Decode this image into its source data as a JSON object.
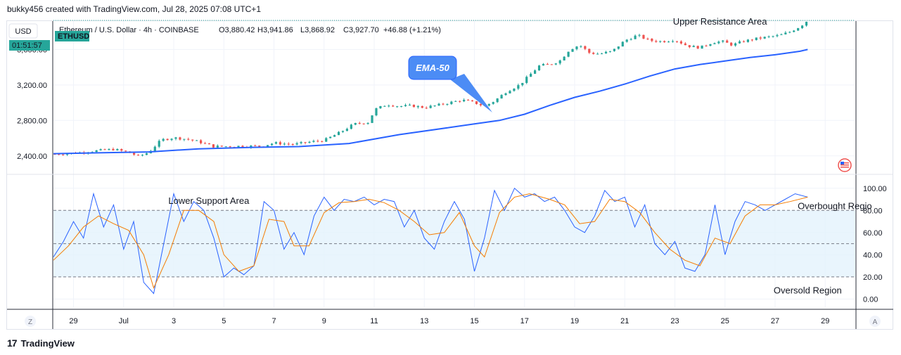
{
  "header": {
    "text": "bukky456 created with TradingView.com, Jul 28, 2025 07:08 UTC+1"
  },
  "footer": {
    "brand": "TradingView",
    "logo": "17"
  },
  "colors": {
    "up": "#26a69a",
    "down": "#ef5350",
    "ema": "#2962ff",
    "k_line": "#2962ff",
    "d_line": "#f57c00",
    "grid": "#f0f3fa",
    "band": "#e3f2fd",
    "accent": "#26a69a",
    "callout": "#4c8cf5"
  },
  "chart_data": [
    {
      "type": "candlestick",
      "symbol_label": "ETHUSD",
      "currency": "USD",
      "countdown": "01:51:57",
      "legend": {
        "name": "Ethereum / U.S. Dollar · 4h · COINBASE",
        "open": "O3,880.42",
        "high": "H3,941.86",
        "low": "L3,868.92",
        "close": "C3,927.70",
        "change": "+46.88 (+1.21%)"
      },
      "y_ticks": [
        "3,600.00",
        "3,200.00",
        "2,800.00",
        "2,400.00"
      ],
      "y_tick_values": [
        3600,
        3200,
        2800,
        2400
      ],
      "ylim": [
        2200,
        3920
      ],
      "x_ticks": [
        "29",
        "Jul",
        "3",
        "5",
        "7",
        "9",
        "11",
        "13",
        "15",
        "17",
        "19",
        "21",
        "23",
        "25",
        "27",
        "29"
      ],
      "x_tick_days": [
        29,
        31,
        33,
        35,
        37,
        39,
        41,
        43,
        45,
        47,
        49,
        51,
        53,
        55,
        57,
        59
      ],
      "xlim": [
        28.2,
        60.2
      ],
      "price_points": [
        [
          28.2,
          2420
        ],
        [
          29,
          2430
        ],
        [
          29.8,
          2455
        ],
        [
          30.6,
          2475
        ],
        [
          31.2,
          2440
        ],
        [
          31.6,
          2395
        ],
        [
          32.0,
          2440
        ],
        [
          32.5,
          2580
        ],
        [
          33.0,
          2605
        ],
        [
          33.5,
          2590
        ],
        [
          34.0,
          2560
        ],
        [
          34.6,
          2505
        ],
        [
          35.5,
          2510
        ],
        [
          36.5,
          2510
        ],
        [
          37.0,
          2545
        ],
        [
          37.8,
          2530
        ],
        [
          38.5,
          2560
        ],
        [
          39.0,
          2575
        ],
        [
          39.6,
          2660
        ],
        [
          40.2,
          2760
        ],
        [
          40.8,
          2780
        ],
        [
          41.0,
          2920
        ],
        [
          41.5,
          2980
        ],
        [
          42.0,
          2960
        ],
        [
          42.5,
          2965
        ],
        [
          43.0,
          2945
        ],
        [
          43.5,
          2970
        ],
        [
          44.0,
          3000
        ],
        [
          44.5,
          3030
        ],
        [
          45.0,
          3000
        ],
        [
          45.4,
          2960
        ],
        [
          45.8,
          3020
        ],
        [
          46.3,
          3130
        ],
        [
          46.8,
          3200
        ],
        [
          47.2,
          3310
        ],
        [
          47.6,
          3420
        ],
        [
          48.0,
          3430
        ],
        [
          48.4,
          3470
        ],
        [
          48.8,
          3600
        ],
        [
          49.2,
          3650
        ],
        [
          49.6,
          3560
        ],
        [
          50.0,
          3550
        ],
        [
          50.5,
          3580
        ],
        [
          51.0,
          3700
        ],
        [
          51.5,
          3760
        ],
        [
          52.0,
          3700
        ],
        [
          52.5,
          3690
        ],
        [
          53.0,
          3710
        ],
        [
          53.5,
          3640
        ],
        [
          54.0,
          3620
        ],
        [
          54.5,
          3680
        ],
        [
          54.9,
          3690
        ],
        [
          55.3,
          3650
        ],
        [
          55.7,
          3690
        ],
        [
          56.2,
          3720
        ],
        [
          56.7,
          3740
        ],
        [
          57.2,
          3760
        ],
        [
          57.6,
          3800
        ],
        [
          58.0,
          3860
        ],
        [
          58.3,
          3928
        ]
      ],
      "ema50_label": "EMA-50",
      "ema50_points": [
        [
          28.2,
          2425
        ],
        [
          30,
          2435
        ],
        [
          32,
          2445
        ],
        [
          34,
          2480
        ],
        [
          36,
          2495
        ],
        [
          38,
          2505
        ],
        [
          40,
          2540
        ],
        [
          42,
          2640
        ],
        [
          44,
          2720
        ],
        [
          45,
          2760
        ],
        [
          46,
          2800
        ],
        [
          47,
          2870
        ],
        [
          48,
          2970
        ],
        [
          49,
          3060
        ],
        [
          50,
          3130
        ],
        [
          51,
          3210
        ],
        [
          52,
          3300
        ],
        [
          53,
          3380
        ],
        [
          54,
          3430
        ],
        [
          55,
          3470
        ],
        [
          56,
          3510
        ],
        [
          57,
          3540
        ],
        [
          58,
          3580
        ],
        [
          58.3,
          3600
        ]
      ],
      "annotations": [
        {
          "text": "Upper Resistance Area",
          "day": 54.8,
          "price": 3880
        }
      ]
    },
    {
      "type": "line",
      "indicator": "stochastic",
      "y_ticks": [
        "100.00",
        "80.00",
        "60.00",
        "40.00",
        "20.00",
        "0.00"
      ],
      "y_tick_values": [
        100,
        80,
        60,
        40,
        20,
        0
      ],
      "ylim": [
        -8,
        110
      ],
      "overbought": 80,
      "oversold": 20,
      "midline": 50,
      "k_points": [
        [
          28.2,
          38
        ],
        [
          28.6,
          52
        ],
        [
          29.0,
          70
        ],
        [
          29.4,
          55
        ],
        [
          29.8,
          95
        ],
        [
          30.2,
          65
        ],
        [
          30.6,
          85
        ],
        [
          31.0,
          45
        ],
        [
          31.4,
          70
        ],
        [
          31.8,
          15
        ],
        [
          32.2,
          5
        ],
        [
          32.6,
          50
        ],
        [
          33.0,
          95
        ],
        [
          33.4,
          70
        ],
        [
          33.8,
          88
        ],
        [
          34.2,
          80
        ],
        [
          34.6,
          55
        ],
        [
          35.0,
          20
        ],
        [
          35.4,
          28
        ],
        [
          35.8,
          22
        ],
        [
          36.2,
          30
        ],
        [
          36.6,
          88
        ],
        [
          37.0,
          80
        ],
        [
          37.4,
          45
        ],
        [
          37.8,
          60
        ],
        [
          38.2,
          40
        ],
        [
          38.6,
          75
        ],
        [
          39.0,
          92
        ],
        [
          39.4,
          80
        ],
        [
          39.8,
          90
        ],
        [
          40.2,
          88
        ],
        [
          40.6,
          92
        ],
        [
          41.0,
          85
        ],
        [
          41.4,
          90
        ],
        [
          41.8,
          88
        ],
        [
          42.2,
          65
        ],
        [
          42.6,
          80
        ],
        [
          43.0,
          55
        ],
        [
          43.4,
          45
        ],
        [
          43.8,
          70
        ],
        [
          44.2,
          88
        ],
        [
          44.6,
          72
        ],
        [
          45.0,
          25
        ],
        [
          45.4,
          55
        ],
        [
          45.8,
          98
        ],
        [
          46.2,
          80
        ],
        [
          46.6,
          100
        ],
        [
          47.0,
          92
        ],
        [
          47.4,
          95
        ],
        [
          47.8,
          88
        ],
        [
          48.2,
          92
        ],
        [
          48.6,
          80
        ],
        [
          49.0,
          65
        ],
        [
          49.4,
          60
        ],
        [
          49.8,
          75
        ],
        [
          50.2,
          98
        ],
        [
          50.6,
          88
        ],
        [
          51.0,
          92
        ],
        [
          51.4,
          65
        ],
        [
          51.8,
          85
        ],
        [
          52.2,
          50
        ],
        [
          52.6,
          40
        ],
        [
          53.0,
          52
        ],
        [
          53.4,
          28
        ],
        [
          53.8,
          25
        ],
        [
          54.2,
          40
        ],
        [
          54.6,
          85
        ],
        [
          55.0,
          40
        ],
        [
          55.4,
          70
        ],
        [
          55.8,
          88
        ],
        [
          56.2,
          85
        ],
        [
          56.6,
          80
        ],
        [
          57.0,
          85
        ],
        [
          57.4,
          90
        ],
        [
          57.8,
          95
        ],
        [
          58.3,
          92
        ]
      ],
      "d_points": [
        [
          28.2,
          35
        ],
        [
          28.8,
          48
        ],
        [
          29.4,
          65
        ],
        [
          30.0,
          75
        ],
        [
          30.6,
          68
        ],
        [
          31.2,
          62
        ],
        [
          31.8,
          40
        ],
        [
          32.2,
          10
        ],
        [
          32.8,
          40
        ],
        [
          33.4,
          80
        ],
        [
          34.0,
          80
        ],
        [
          34.6,
          70
        ],
        [
          35.0,
          40
        ],
        [
          35.6,
          25
        ],
        [
          36.2,
          30
        ],
        [
          36.8,
          72
        ],
        [
          37.4,
          70
        ],
        [
          37.8,
          48
        ],
        [
          38.4,
          48
        ],
        [
          39.0,
          78
        ],
        [
          39.6,
          87
        ],
        [
          40.2,
          88
        ],
        [
          40.8,
          90
        ],
        [
          41.4,
          87
        ],
        [
          42.0,
          80
        ],
        [
          42.6,
          70
        ],
        [
          43.2,
          58
        ],
        [
          43.8,
          60
        ],
        [
          44.4,
          78
        ],
        [
          45.0,
          48
        ],
        [
          45.4,
          38
        ],
        [
          46.0,
          78
        ],
        [
          46.6,
          92
        ],
        [
          47.2,
          95
        ],
        [
          48.0,
          90
        ],
        [
          48.6,
          85
        ],
        [
          49.2,
          68
        ],
        [
          49.8,
          70
        ],
        [
          50.4,
          90
        ],
        [
          51.0,
          88
        ],
        [
          51.6,
          78
        ],
        [
          52.2,
          60
        ],
        [
          52.8,
          45
        ],
        [
          53.4,
          35
        ],
        [
          54.0,
          30
        ],
        [
          54.6,
          55
        ],
        [
          55.2,
          50
        ],
        [
          55.8,
          75
        ],
        [
          56.4,
          85
        ],
        [
          57.0,
          85
        ],
        [
          57.6,
          88
        ],
        [
          58.3,
          92
        ]
      ],
      "annotations": [
        {
          "text": "Lower Support Area",
          "day": 34.4,
          "value": 86
        },
        {
          "text": "Overbought Regio",
          "day": 57.9,
          "value": 81
        },
        {
          "text": "Oversold Region",
          "day": 58.3,
          "value": 5
        }
      ]
    }
  ],
  "axis_buttons": {
    "left": "Z",
    "right": "A"
  }
}
